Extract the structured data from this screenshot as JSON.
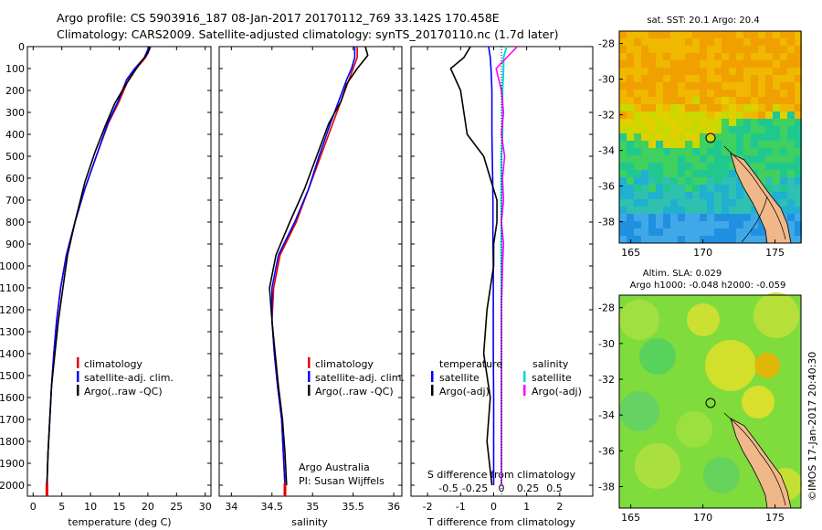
{
  "header": {
    "line1": "Argo profile: CS 5903916_187 08-Jan-2017 20170112_769 33.142S 170.458E",
    "line2": "Climatology: CARS2009. Satellite-adjusted climatology: synTS_20170110.nc (1.7d later)"
  },
  "colors": {
    "climatology": "#e00000",
    "satellite": "#0000ff",
    "argo": "#000000",
    "cyan": "#00d8e0",
    "magenta": "#ff00ff"
  },
  "depth_ticks": [
    "0",
    "100",
    "200",
    "300",
    "400",
    "500",
    "600",
    "700",
    "800",
    "900",
    "1000",
    "1100",
    "1200",
    "1300",
    "1400",
    "1500",
    "1600",
    "1700",
    "1800",
    "1900",
    "2000"
  ],
  "panels": {
    "temperature": {
      "xlabel": "temperature (deg C)",
      "ticks": [
        "0",
        "5",
        "10",
        "15",
        "20",
        "25",
        "30"
      ],
      "legend": [
        "climatology",
        "satellite-adj. clim.",
        "Argo(..raw -QC)"
      ]
    },
    "salinity": {
      "xlabel": "salinity",
      "ticks": [
        "34",
        "34.5",
        "35",
        "35.5",
        "36"
      ],
      "legend": [
        "climatology",
        "satellite-adj. clim.",
        "Argo(..raw -QC)"
      ],
      "credit1": "Argo Australia",
      "credit2": "PI: Susan Wijffels"
    },
    "difference": {
      "xlabel": "T difference from climatology",
      "top_label": "S difference from climatology",
      "t_ticks": [
        "-2",
        "-1",
        "0",
        "1",
        "2"
      ],
      "s_ticks": [
        "-0.5",
        "-0.25",
        "0",
        "0.25",
        "0.5"
      ],
      "legend_temp_title": "temperature",
      "legend_sal_title": "salinity",
      "legend_temp": [
        "satellite",
        "Argo(-adj)"
      ],
      "legend_sal": [
        "satellite",
        "Argo(-adj)"
      ]
    }
  },
  "maps": {
    "sst_title": "sat. SST: 20.1  Argo: 20.4",
    "sla_title1": "Altim. SLA: 0.029",
    "sla_title2": "Argo h1000: -0.048 h2000: -0.059",
    "lon_ticks": [
      "165",
      "170",
      "175"
    ],
    "lat_ticks": [
      "-28",
      "-30",
      "-32",
      "-34",
      "-36",
      "-38"
    ]
  },
  "side_stamp": "©IMOS 17-Jan-2017 20:40:30",
  "chart_data": [
    {
      "type": "line",
      "title": "",
      "xlabel": "temperature (deg C)",
      "ylabel": "",
      "xlim": [
        -1,
        31
      ],
      "ylim": [
        2050,
        0
      ],
      "series": [
        {
          "name": "climatology",
          "x": [
            20.5,
            19.6,
            18.0,
            16.6,
            15.0,
            13.1,
            11.0,
            9.0,
            7.3,
            5.8,
            4.8,
            4.1,
            3.6,
            3.2,
            2.9,
            2.6,
            2.4
          ],
          "y": [
            0,
            50,
            100,
            150,
            250,
            350,
            500,
            650,
            800,
            950,
            1100,
            1250,
            1400,
            1550,
            1700,
            1850,
            2000
          ]
        },
        {
          "name": "satellite-adj. clim.",
          "x": [
            20.2,
            19.4,
            17.7,
            16.3,
            14.8,
            13.0,
            11.0,
            9.0,
            7.3,
            5.8,
            4.8,
            4.1,
            3.6,
            3.2,
            2.9,
            2.6,
            2.4
          ],
          "y": [
            0,
            50,
            100,
            150,
            250,
            350,
            500,
            650,
            800,
            950,
            1100,
            1250,
            1400,
            1550,
            1700,
            1850,
            2000
          ]
        },
        {
          "name": "Argo(..raw -QC)",
          "x": [
            20.4,
            20.0,
            18.5,
            16.0,
            14.2,
            12.6,
            10.8,
            9.0,
            7.3,
            6.0,
            5.2,
            4.4,
            3.8,
            3.2,
            2.9,
            2.6,
            2.4
          ],
          "y": [
            0,
            30,
            80,
            180,
            260,
            360,
            480,
            620,
            800,
            950,
            1100,
            1250,
            1400,
            1550,
            1700,
            1850,
            2000
          ]
        }
      ]
    },
    {
      "type": "line",
      "title": "",
      "xlabel": "salinity",
      "ylabel": "",
      "xlim": [
        33.85,
        36.1
      ],
      "ylim": [
        2050,
        0
      ],
      "series": [
        {
          "name": "climatology",
          "x": [
            35.55,
            35.55,
            35.5,
            35.45,
            35.35,
            35.25,
            35.1,
            34.95,
            34.8,
            34.6,
            34.52,
            34.5,
            34.53,
            34.57,
            34.62,
            34.64,
            34.66
          ],
          "y": [
            0,
            50,
            100,
            150,
            250,
            350,
            500,
            650,
            800,
            950,
            1100,
            1250,
            1400,
            1550,
            1700,
            1850,
            2000
          ]
        },
        {
          "name": "satellite-adj. clim.",
          "x": [
            35.52,
            35.52,
            35.48,
            35.42,
            35.32,
            35.22,
            35.08,
            34.95,
            34.78,
            34.58,
            34.5,
            34.5,
            34.53,
            34.57,
            34.62,
            34.64,
            34.66
          ],
          "y": [
            0,
            50,
            100,
            150,
            250,
            350,
            500,
            650,
            800,
            950,
            1100,
            1250,
            1400,
            1550,
            1700,
            1850,
            2000
          ]
        },
        {
          "name": "Argo(..raw -QC)",
          "x": [
            35.65,
            35.68,
            35.55,
            35.42,
            35.35,
            35.2,
            35.05,
            34.9,
            34.72,
            34.55,
            34.47,
            34.5,
            34.54,
            34.58,
            34.63,
            34.66,
            34.68
          ],
          "y": [
            0,
            40,
            100,
            170,
            250,
            350,
            500,
            650,
            800,
            950,
            1100,
            1250,
            1400,
            1550,
            1700,
            1850,
            2000
          ]
        }
      ]
    },
    {
      "type": "line",
      "title": "",
      "xlabel": "T difference from climatology",
      "ylabel": "",
      "xlim": [
        -2.5,
        3
      ],
      "ylim": [
        2050,
        0
      ],
      "series": [
        {
          "name": "satellite",
          "x": [
            -0.15,
            -0.1,
            -0.08,
            -0.05,
            -0.05,
            -0.05,
            -0.04,
            -0.03,
            -0.02,
            -0.02,
            -0.02,
            -0.01,
            -0.01,
            -0.01,
            0,
            0,
            0
          ],
          "y": [
            0,
            50,
            100,
            200,
            300,
            400,
            500,
            600,
            700,
            800,
            900,
            1000,
            1200,
            1400,
            1600,
            1800,
            2000
          ]
        },
        {
          "name": "Argo(-adj)",
          "x": [
            -0.7,
            -0.9,
            -1.3,
            -1.0,
            -0.9,
            -0.8,
            -0.3,
            -0.1,
            0.1,
            0.1,
            0.0,
            0.0,
            -0.2,
            -0.3,
            -0.1,
            -0.2,
            -0.05
          ],
          "y": [
            0,
            50,
            100,
            200,
            300,
            400,
            500,
            600,
            700,
            800,
            900,
            1000,
            1200,
            1400,
            1600,
            1800,
            2000
          ]
        },
        {
          "name": "satellite",
          "x": [
            0.05,
            0.02,
            0.02,
            0.01,
            0.01,
            0.01,
            0.0,
            0.0,
            0.0,
            0.0,
            0.0,
            0.0,
            0.0,
            0.0,
            0.0,
            0.0,
            0.0
          ],
          "y": [
            0,
            50,
            100,
            200,
            300,
            400,
            500,
            600,
            700,
            800,
            900,
            1000,
            1200,
            1400,
            1600,
            1800,
            2000
          ]
        },
        {
          "name": "Argo(-adj)",
          "x": [
            0.15,
            0.05,
            -0.05,
            0.0,
            0.02,
            0.0,
            0.03,
            0.01,
            0.02,
            0.0,
            0.02,
            0.01,
            0.0,
            0.0,
            0.0,
            0.0,
            0.0
          ],
          "y": [
            0,
            50,
            100,
            200,
            300,
            400,
            500,
            600,
            700,
            800,
            900,
            1000,
            1200,
            1400,
            1600,
            1800,
            2000
          ]
        }
      ]
    }
  ]
}
